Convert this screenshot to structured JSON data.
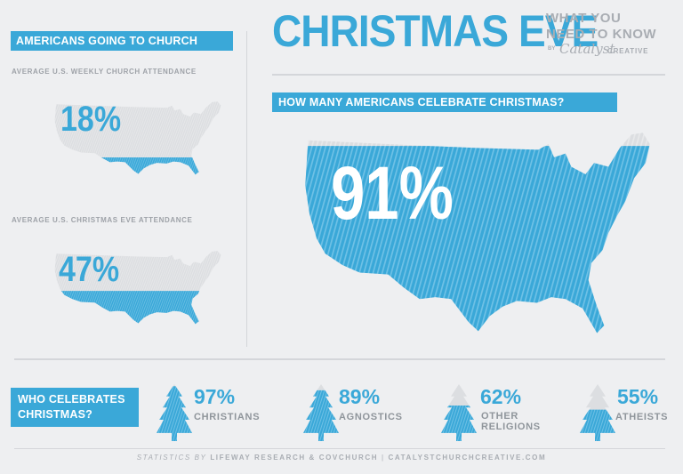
{
  "header": {
    "main_title": "CHRISTMAS EVE",
    "subtitle_line1": "WHAT YOU",
    "subtitle_line2": "NEED TO KNOW",
    "by_label": "BY",
    "brand_script": "Catalyst",
    "brand_suffix": "CREATIVE"
  },
  "left_panel": {
    "title": "AMERICANS GOING TO CHURCH",
    "weekly": {
      "label": "AVERAGE U.S. WEEKLY CHURCH ATTENDANCE",
      "value": "18%",
      "fill_fraction": 0.18
    },
    "christmas_eve": {
      "label": "AVERAGE U.S. CHRISTMAS EVE ATTENDANCE",
      "value": "47%",
      "fill_fraction": 0.47
    }
  },
  "right_panel": {
    "title": "HOW MANY AMERICANS CELEBRATE CHRISTMAS?",
    "value": "91%",
    "fill_fraction": 0.91
  },
  "bottom": {
    "title_line1": "WHO CELEBRATES",
    "title_line2": "CHRISTMAS?",
    "groups": [
      {
        "value": "97%",
        "label_line1": "CHRISTIANS",
        "label_line2": "",
        "fill_fraction": 0.97
      },
      {
        "value": "89%",
        "label_line1": "AGNOSTICS",
        "label_line2": "",
        "fill_fraction": 0.89
      },
      {
        "value": "62%",
        "label_line1": "OTHER",
        "label_line2": "RELIGIONS",
        "fill_fraction": 0.62
      },
      {
        "value": "55%",
        "label_line1": "ATHEISTS",
        "label_line2": "",
        "fill_fraction": 0.55
      }
    ]
  },
  "footer": {
    "prefix": "STATISTICS BY",
    "sources": "LIFEWAY RESEARCH & COVCHURCH",
    "separator": "|",
    "site": "CATALYSTCHURCHCREATIVE.COM"
  },
  "colors": {
    "accent": "#3aa8d8",
    "map_gray": "#dcdee1",
    "background": "#eeeff1",
    "label_gray": "#9ea2a8"
  }
}
